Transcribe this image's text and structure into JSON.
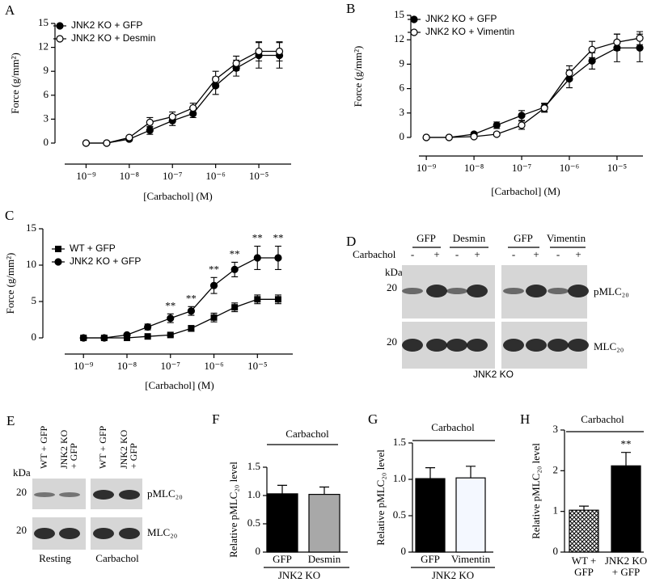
{
  "chart_data": [
    {
      "type": "line",
      "panel": "A",
      "xlabel": "[Carbachol] (M)",
      "ylabel": "Force  (g/mm²)",
      "log_x": true,
      "xlim": [
        3.2e-10,
        5.6e-05
      ],
      "xticks": [
        {
          "value": 1e-09,
          "label": "10⁻⁹"
        },
        {
          "value": 1e-08,
          "label": "10⁻⁸"
        },
        {
          "value": 1e-07,
          "label": "10⁻⁷"
        },
        {
          "value": 1e-06,
          "label": "10⁻⁶"
        },
        {
          "value": 1e-05,
          "label": "10⁻⁵"
        }
      ],
      "ylim": [
        0,
        15
      ],
      "yticks": [
        0,
        3,
        6,
        9,
        12,
        15
      ],
      "legend": "upper left",
      "x": [
        1e-09,
        3e-09,
        1e-08,
        3e-08,
        1e-07,
        3e-07,
        1e-06,
        3e-06,
        1e-05,
        3e-05
      ],
      "series": [
        {
          "name": "JNK2 KO + GFP",
          "marker": "filled-circle",
          "color": "#000000",
          "values": [
            0,
            0,
            0.5,
            1.6,
            2.8,
            3.7,
            7.2,
            9.4,
            11.0,
            11.0
          ],
          "errors": [
            0.1,
            0.1,
            0.2,
            0.5,
            0.6,
            0.5,
            1.1,
            1.0,
            1.6,
            1.6
          ]
        },
        {
          "name": "JNK2 KO + Desmin",
          "marker": "open-circle",
          "color": "#000000",
          "values": [
            0,
            0,
            0.7,
            2.6,
            3.3,
            4.4,
            8.0,
            10.0,
            11.5,
            11.5
          ],
          "errors": [
            0.1,
            0.1,
            0.2,
            0.6,
            0.6,
            0.6,
            1.0,
            0.9,
            1.2,
            1.2
          ]
        }
      ]
    },
    {
      "type": "line",
      "panel": "B",
      "xlabel": "[Carbachol] (M)",
      "ylabel": "Force  (g/mm²)",
      "log_x": true,
      "xlim": [
        7e-10,
        3.5e-05
      ],
      "xticks": [
        {
          "value": 1e-09,
          "label": "10⁻⁹"
        },
        {
          "value": 1e-08,
          "label": "10⁻⁸"
        },
        {
          "value": 1e-07,
          "label": "10⁻⁷"
        },
        {
          "value": 1e-06,
          "label": "10⁻⁶"
        },
        {
          "value": 1e-05,
          "label": "10⁻⁵"
        }
      ],
      "ylim": [
        0,
        15
      ],
      "yticks": [
        0,
        3,
        6,
        9,
        12,
        15
      ],
      "legend": "upper left",
      "x": [
        1e-09,
        3e-09,
        1e-08,
        3e-08,
        1e-07,
        3e-07,
        1e-06,
        3e-06,
        1e-05,
        3e-05
      ],
      "series": [
        {
          "name": "JNK2 KO + GFP",
          "marker": "filled-circle",
          "color": "#000000",
          "values": [
            0,
            0,
            0.4,
            1.5,
            2.7,
            3.7,
            7.2,
            9.4,
            11.0,
            11.0
          ],
          "errors": [
            0.1,
            0.1,
            0.2,
            0.4,
            0.6,
            0.5,
            1.1,
            1.0,
            1.7,
            1.7
          ]
        },
        {
          "name": "JNK2 KO +  Vimentin",
          "marker": "open-circle",
          "color": "#000000",
          "values": [
            0,
            0,
            0.1,
            0.4,
            1.5,
            3.6,
            7.9,
            10.8,
            11.7,
            12.2
          ],
          "errors": [
            0.1,
            0.1,
            0.1,
            0.2,
            0.5,
            0.5,
            0.9,
            1.0,
            1.0,
            0.8
          ]
        }
      ]
    },
    {
      "type": "line",
      "panel": "C",
      "xlabel": "[Carbachol] (M)",
      "ylabel": "Force  (g/mm²)",
      "log_x": true,
      "xlim": [
        3.7e-10,
        6.5e-05
      ],
      "xticks": [
        {
          "value": 1e-09,
          "label": "10⁻⁹"
        },
        {
          "value": 1e-08,
          "label": "10⁻⁸"
        },
        {
          "value": 1e-07,
          "label": "10⁻⁷"
        },
        {
          "value": 1e-06,
          "label": "10⁻⁶"
        },
        {
          "value": 1e-05,
          "label": "10⁻⁵"
        }
      ],
      "ylim": [
        0,
        15
      ],
      "yticks": [
        0,
        5,
        10,
        15
      ],
      "legend": "upper left",
      "x": [
        1e-09,
        3e-09,
        1e-08,
        3e-08,
        1e-07,
        3e-07,
        1e-06,
        3e-06,
        1e-05,
        3e-05
      ],
      "significance": [
        null,
        null,
        null,
        null,
        "**",
        "**",
        "**",
        "**",
        "**",
        "**"
      ],
      "series": [
        {
          "name": "WT + GFP",
          "marker": "filled-square",
          "color": "#000000",
          "values": [
            0,
            0,
            0,
            0.2,
            0.4,
            1.3,
            2.8,
            4.2,
            5.3,
            5.3
          ],
          "errors": [
            0.1,
            0.1,
            0.1,
            0.1,
            0.2,
            0.4,
            0.6,
            0.6,
            0.6,
            0.6
          ]
        },
        {
          "name": "JNK2 KO + GFP",
          "marker": "filled-circle",
          "color": "#000000",
          "values": [
            0,
            0,
            0.4,
            1.5,
            2.7,
            3.7,
            7.2,
            9.4,
            11.0,
            11.0
          ],
          "errors": [
            0.1,
            0.1,
            0.2,
            0.4,
            0.6,
            0.6,
            1.1,
            1.0,
            1.6,
            1.6
          ]
        }
      ]
    },
    {
      "type": "bar",
      "panel": "F",
      "title": "Carbachol",
      "ylabel": "Relative pMLC₂₀ level",
      "group_label": "JNK2 KO",
      "categories": [
        "GFP",
        "Desmin"
      ],
      "values": [
        1.03,
        1.02
      ],
      "errors": [
        0.15,
        0.13
      ],
      "colors": [
        "#000000",
        "#a8a8a8"
      ],
      "ylim": [
        0,
        1.5
      ],
      "yticks": [
        0,
        0.5,
        {
          "value": 1,
          "label": "1.0"
        },
        1.5
      ]
    },
    {
      "type": "bar",
      "panel": "G",
      "title": "Carbachol",
      "ylabel": "Relative pMLC₂₀ level",
      "group_label": "JNK2 KO",
      "categories": [
        "GFP",
        "Vimentin"
      ],
      "values": [
        1.01,
        1.02
      ],
      "errors": [
        0.15,
        0.16
      ],
      "colors": [
        "#000000",
        "#f4f8ff"
      ],
      "ylim": [
        0,
        1.5
      ],
      "yticks": [
        0,
        0.5,
        {
          "value": 1,
          "label": "1.0"
        },
        1.5
      ]
    },
    {
      "type": "bar",
      "panel": "H",
      "title": "Carbachol",
      "ylabel": "Relative pMLC₂₀ level",
      "categories": [
        [
          "WT +",
          "GFP"
        ],
        [
          "JNK2 KO",
          "+ GFP"
        ]
      ],
      "values": [
        1.03,
        2.12
      ],
      "errors": [
        0.1,
        0.33
      ],
      "colors": [
        "#ffffff",
        "#000000"
      ],
      "hatch": [
        true,
        false
      ],
      "significance": [
        null,
        "**"
      ],
      "ylim": [
        0,
        3
      ],
      "yticks": [
        0,
        1,
        2,
        3
      ]
    }
  ],
  "blots": {
    "D": {
      "panel": "D",
      "groups": [
        "GFP",
        "Desmin",
        "GFP",
        "Vimentin"
      ],
      "treatment": "Carbachol",
      "signs": [
        "-",
        "+",
        "-",
        "+",
        "-",
        "+",
        "-",
        "+"
      ],
      "kda": "kDa",
      "markers": [
        "20",
        "20"
      ],
      "bands": [
        "pMLC₂₀",
        "MLC₂₀"
      ],
      "footer": "JNK2 KO"
    },
    "E": {
      "panel": "E",
      "lanes": [
        [
          "WT + GFP"
        ],
        [
          "JNK2 KO",
          "+ GFP"
        ],
        [
          "WT + GFP"
        ],
        [
          "JNK2 KO",
          "+ GFP"
        ]
      ],
      "kda": "kDa",
      "markers": [
        "20",
        "20"
      ],
      "bands": [
        "pMLC₂₀",
        "MLC₂₀"
      ],
      "conditions": [
        "Resting",
        "Carbachol"
      ]
    }
  }
}
